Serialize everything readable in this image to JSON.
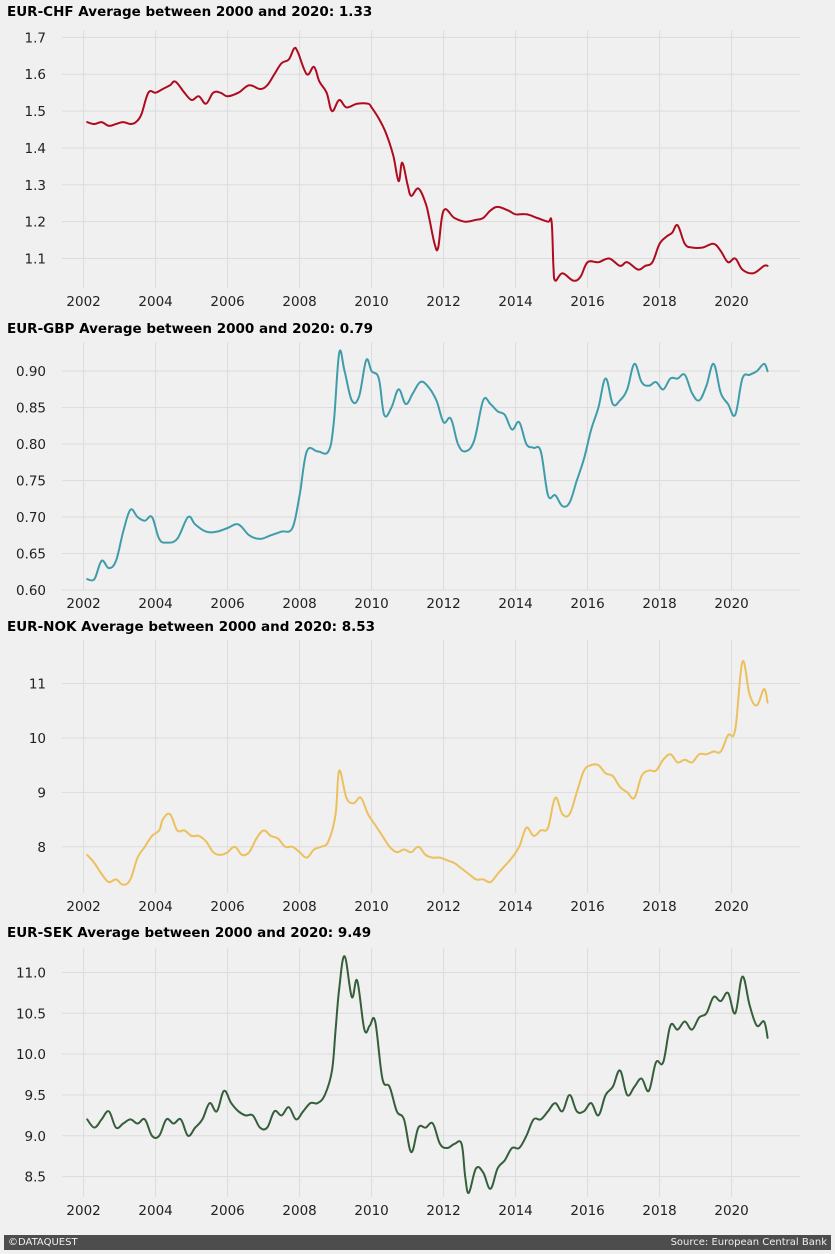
{
  "chart_data": [
    {
      "type": "line",
      "title": "EUR-CHF Average between 2000 and 2020: 1.33",
      "color": "#af0b1e",
      "ylim": [
        1.02,
        1.72
      ],
      "xlim": [
        2001.4,
        2021.9
      ],
      "yticks": [
        1.1,
        1.2,
        1.3,
        1.4,
        1.5,
        1.6,
        1.7
      ],
      "ytick_labels": [
        "1.1",
        "1.2",
        "1.3",
        "1.4",
        "1.5",
        "1.6",
        "1.7"
      ],
      "xticks": [
        2002,
        2004,
        2006,
        2008,
        2010,
        2012,
        2014,
        2016,
        2018,
        2020
      ],
      "xtick_labels": [
        "2002",
        "2004",
        "2006",
        "2008",
        "2010",
        "2012",
        "2014",
        "2016",
        "2018",
        "2020"
      ],
      "series": [
        {
          "x": [
            2002.1,
            2002.3,
            2002.5,
            2002.7,
            2002.9,
            2003.1,
            2003.3,
            2003.45,
            2003.6,
            2003.8,
            2004.0,
            2004.2,
            2004.4,
            2004.55,
            2004.8,
            2005.0,
            2005.2,
            2005.4,
            2005.6,
            2005.8,
            2006.0,
            2006.3,
            2006.6,
            2006.9,
            2007.1,
            2007.3,
            2007.5,
            2007.7,
            2007.85,
            2007.95,
            2008.2,
            2008.4,
            2008.55,
            2008.75,
            2008.9,
            2009.1,
            2009.3,
            2009.6,
            2009.9,
            2010.0,
            2010.2,
            2010.4,
            2010.6,
            2010.75,
            2010.85,
            2011.0,
            2011.1,
            2011.3,
            2011.5,
            2011.6,
            2011.75,
            2011.85,
            2012.0,
            2012.3,
            2012.6,
            2012.9,
            2013.1,
            2013.3,
            2013.5,
            2013.8,
            2014.0,
            2014.3,
            2014.6,
            2014.9,
            2015.0,
            2015.05,
            2015.1,
            2015.3,
            2015.6,
            2015.8,
            2016.0,
            2016.3,
            2016.6,
            2016.9,
            2017.1,
            2017.4,
            2017.6,
            2017.8,
            2018.0,
            2018.2,
            2018.35,
            2018.5,
            2018.7,
            2018.9,
            2019.2,
            2019.5,
            2019.7,
            2019.9,
            2020.1,
            2020.3,
            2020.6,
            2020.9,
            2021.0
          ],
          "y": [
            1.47,
            1.465,
            1.47,
            1.46,
            1.465,
            1.47,
            1.465,
            1.47,
            1.49,
            1.55,
            1.55,
            1.56,
            1.57,
            1.58,
            1.55,
            1.53,
            1.54,
            1.52,
            1.55,
            1.55,
            1.54,
            1.55,
            1.57,
            1.56,
            1.57,
            1.6,
            1.63,
            1.64,
            1.67,
            1.66,
            1.6,
            1.62,
            1.58,
            1.55,
            1.5,
            1.53,
            1.51,
            1.52,
            1.52,
            1.51,
            1.48,
            1.44,
            1.38,
            1.31,
            1.36,
            1.3,
            1.27,
            1.29,
            1.25,
            1.21,
            1.14,
            1.13,
            1.23,
            1.21,
            1.2,
            1.205,
            1.21,
            1.23,
            1.24,
            1.23,
            1.22,
            1.22,
            1.21,
            1.2,
            1.2,
            1.08,
            1.04,
            1.06,
            1.04,
            1.05,
            1.09,
            1.09,
            1.1,
            1.08,
            1.09,
            1.07,
            1.08,
            1.09,
            1.14,
            1.16,
            1.17,
            1.19,
            1.14,
            1.13,
            1.13,
            1.14,
            1.12,
            1.09,
            1.1,
            1.07,
            1.06,
            1.08,
            1.08
          ]
        }
      ]
    },
    {
      "type": "line",
      "title": "EUR-GBP Average between 2000 and 2020: 0.79",
      "color": "#3f9caa",
      "ylim": [
        0.6,
        0.94
      ],
      "xlim": [
        2001.4,
        2021.9
      ],
      "yticks": [
        0.6,
        0.65,
        0.7,
        0.75,
        0.8,
        0.85,
        0.9
      ],
      "ytick_labels": [
        "0.60",
        "0.65",
        "0.70",
        "0.75",
        "0.80",
        "0.85",
        "0.90"
      ],
      "xticks": [
        2002,
        2004,
        2006,
        2008,
        2010,
        2012,
        2014,
        2016,
        2018,
        2020
      ],
      "xtick_labels": [
        "2002",
        "2004",
        "2006",
        "2008",
        "2010",
        "2012",
        "2014",
        "2016",
        "2018",
        "2020"
      ],
      "series": [
        {
          "x": [
            2002.1,
            2002.3,
            2002.5,
            2002.7,
            2002.9,
            2003.1,
            2003.3,
            2003.5,
            2003.7,
            2003.9,
            2004.1,
            2004.3,
            2004.6,
            2004.9,
            2005.1,
            2005.4,
            2005.7,
            2006.0,
            2006.3,
            2006.6,
            2006.9,
            2007.2,
            2007.5,
            2007.8,
            2008.0,
            2008.2,
            2008.5,
            2008.8,
            2008.95,
            2009.1,
            2009.25,
            2009.45,
            2009.65,
            2009.85,
            2010.0,
            2010.2,
            2010.35,
            2010.55,
            2010.75,
            2010.95,
            2011.15,
            2011.35,
            2011.55,
            2011.8,
            2012.0,
            2012.2,
            2012.4,
            2012.6,
            2012.85,
            2013.1,
            2013.3,
            2013.5,
            2013.7,
            2013.9,
            2014.1,
            2014.3,
            2014.5,
            2014.7,
            2014.9,
            2015.1,
            2015.3,
            2015.5,
            2015.7,
            2015.9,
            2016.1,
            2016.3,
            2016.5,
            2016.7,
            2016.9,
            2017.1,
            2017.3,
            2017.5,
            2017.7,
            2017.9,
            2018.1,
            2018.3,
            2018.5,
            2018.7,
            2018.9,
            2019.1,
            2019.3,
            2019.5,
            2019.7,
            2019.9,
            2020.1,
            2020.3,
            2020.5,
            2020.7,
            2020.9,
            2021.0
          ],
          "y": [
            0.615,
            0.615,
            0.64,
            0.63,
            0.64,
            0.68,
            0.71,
            0.7,
            0.695,
            0.7,
            0.67,
            0.665,
            0.67,
            0.7,
            0.69,
            0.68,
            0.68,
            0.685,
            0.69,
            0.675,
            0.67,
            0.675,
            0.68,
            0.685,
            0.73,
            0.79,
            0.79,
            0.79,
            0.83,
            0.925,
            0.9,
            0.86,
            0.865,
            0.915,
            0.9,
            0.89,
            0.84,
            0.85,
            0.875,
            0.855,
            0.87,
            0.885,
            0.88,
            0.86,
            0.83,
            0.835,
            0.8,
            0.79,
            0.805,
            0.86,
            0.855,
            0.845,
            0.84,
            0.82,
            0.83,
            0.8,
            0.795,
            0.79,
            0.73,
            0.73,
            0.715,
            0.72,
            0.75,
            0.78,
            0.82,
            0.85,
            0.89,
            0.855,
            0.86,
            0.875,
            0.91,
            0.885,
            0.88,
            0.885,
            0.875,
            0.89,
            0.89,
            0.895,
            0.87,
            0.86,
            0.88,
            0.91,
            0.87,
            0.855,
            0.84,
            0.89,
            0.895,
            0.9,
            0.91,
            0.9
          ]
        }
      ]
    },
    {
      "type": "line",
      "title": "EUR-NOK Average between 2000 and 2020: 8.53",
      "color": "#ecc05d",
      "ylim": [
        7.15,
        11.8
      ],
      "xlim": [
        2001.4,
        2021.9
      ],
      "yticks": [
        8,
        9,
        10,
        11
      ],
      "ytick_labels": [
        "8",
        "9",
        "10",
        "11"
      ],
      "xticks": [
        2002,
        2004,
        2006,
        2008,
        2010,
        2012,
        2014,
        2016,
        2018,
        2020
      ],
      "xtick_labels": [
        "2002",
        "2004",
        "2006",
        "2008",
        "2010",
        "2012",
        "2014",
        "2016",
        "2018",
        "2020"
      ],
      "series": [
        {
          "x": [
            2002.1,
            2002.3,
            2002.5,
            2002.7,
            2002.9,
            2003.1,
            2003.3,
            2003.5,
            2003.7,
            2003.9,
            2004.1,
            2004.2,
            2004.4,
            2004.6,
            2004.8,
            2005.0,
            2005.2,
            2005.4,
            2005.6,
            2005.8,
            2006.0,
            2006.2,
            2006.4,
            2006.6,
            2006.8,
            2007.0,
            2007.2,
            2007.4,
            2007.6,
            2007.8,
            2008.0,
            2008.2,
            2008.4,
            2008.6,
            2008.8,
            2009.0,
            2009.1,
            2009.3,
            2009.5,
            2009.7,
            2009.9,
            2010.1,
            2010.3,
            2010.5,
            2010.7,
            2010.9,
            2011.1,
            2011.3,
            2011.5,
            2011.7,
            2011.9,
            2012.1,
            2012.3,
            2012.5,
            2012.7,
            2012.9,
            2013.1,
            2013.3,
            2013.5,
            2013.7,
            2013.9,
            2014.1,
            2014.3,
            2014.5,
            2014.7,
            2014.9,
            2015.1,
            2015.3,
            2015.5,
            2015.7,
            2015.9,
            2016.1,
            2016.3,
            2016.5,
            2016.7,
            2016.9,
            2017.1,
            2017.3,
            2017.5,
            2017.7,
            2017.9,
            2018.1,
            2018.3,
            2018.5,
            2018.7,
            2018.9,
            2019.1,
            2019.3,
            2019.5,
            2019.7,
            2019.9,
            2020.1,
            2020.3,
            2020.5,
            2020.7,
            2020.9,
            2021.0
          ],
          "y": [
            7.85,
            7.7,
            7.5,
            7.35,
            7.4,
            7.3,
            7.4,
            7.8,
            8.0,
            8.2,
            8.3,
            8.5,
            8.6,
            8.3,
            8.3,
            8.2,
            8.2,
            8.1,
            7.9,
            7.85,
            7.9,
            8.0,
            7.85,
            7.9,
            8.15,
            8.3,
            8.2,
            8.15,
            8.0,
            8.0,
            7.9,
            7.8,
            7.95,
            8.0,
            8.1,
            8.6,
            9.4,
            8.9,
            8.8,
            8.9,
            8.6,
            8.4,
            8.2,
            8.0,
            7.9,
            7.95,
            7.9,
            8.0,
            7.85,
            7.8,
            7.8,
            7.75,
            7.7,
            7.6,
            7.5,
            7.4,
            7.4,
            7.35,
            7.5,
            7.65,
            7.8,
            8.0,
            8.35,
            8.2,
            8.3,
            8.35,
            8.9,
            8.6,
            8.6,
            9.0,
            9.4,
            9.5,
            9.5,
            9.35,
            9.3,
            9.1,
            9.0,
            8.9,
            9.3,
            9.4,
            9.4,
            9.6,
            9.7,
            9.55,
            9.6,
            9.55,
            9.7,
            9.7,
            9.75,
            9.75,
            10.05,
            10.15,
            11.4,
            10.8,
            10.6,
            10.9,
            10.65
          ]
        }
      ]
    },
    {
      "type": "line",
      "title": "EUR-SEK Average between 2000 and 2020: 9.49",
      "color": "#355e3b",
      "ylim": [
        8.25,
        11.3
      ],
      "xlim": [
        2001.4,
        2021.9
      ],
      "yticks": [
        8.5,
        9.0,
        9.5,
        10.0,
        10.5,
        11.0
      ],
      "ytick_labels": [
        "8.5",
        "9.0",
        "9.5",
        "10.0",
        "10.5",
        "11.0"
      ],
      "xticks": [
        2002,
        2004,
        2006,
        2008,
        2010,
        2012,
        2014,
        2016,
        2018,
        2020
      ],
      "xtick_labels": [
        "2002",
        "2004",
        "2006",
        "2008",
        "2010",
        "2012",
        "2014",
        "2016",
        "2018",
        "2020"
      ],
      "series": [
        {
          "x": [
            2002.1,
            2002.3,
            2002.5,
            2002.7,
            2002.9,
            2003.1,
            2003.3,
            2003.5,
            2003.7,
            2003.9,
            2004.1,
            2004.3,
            2004.5,
            2004.7,
            2004.9,
            2005.1,
            2005.3,
            2005.5,
            2005.7,
            2005.9,
            2006.1,
            2006.3,
            2006.5,
            2006.7,
            2006.9,
            2007.1,
            2007.3,
            2007.5,
            2007.7,
            2007.9,
            2008.1,
            2008.3,
            2008.5,
            2008.7,
            2008.9,
            2009.0,
            2009.1,
            2009.25,
            2009.45,
            2009.6,
            2009.8,
            2009.95,
            2010.1,
            2010.3,
            2010.5,
            2010.7,
            2010.9,
            2011.1,
            2011.3,
            2011.5,
            2011.7,
            2011.9,
            2012.1,
            2012.3,
            2012.5,
            2012.6,
            2012.7,
            2012.9,
            2013.1,
            2013.3,
            2013.5,
            2013.7,
            2013.9,
            2014.1,
            2014.3,
            2014.5,
            2014.7,
            2014.9,
            2015.1,
            2015.3,
            2015.5,
            2015.7,
            2015.9,
            2016.1,
            2016.3,
            2016.5,
            2016.7,
            2016.9,
            2017.1,
            2017.3,
            2017.5,
            2017.7,
            2017.9,
            2018.1,
            2018.3,
            2018.5,
            2018.7,
            2018.9,
            2019.1,
            2019.3,
            2019.5,
            2019.7,
            2019.9,
            2020.1,
            2020.3,
            2020.5,
            2020.7,
            2020.9,
            2021.0
          ],
          "y": [
            9.2,
            9.1,
            9.2,
            9.3,
            9.1,
            9.15,
            9.2,
            9.15,
            9.2,
            9.0,
            9.0,
            9.2,
            9.15,
            9.2,
            9.0,
            9.1,
            9.2,
            9.4,
            9.3,
            9.55,
            9.4,
            9.3,
            9.25,
            9.25,
            9.1,
            9.1,
            9.3,
            9.25,
            9.35,
            9.2,
            9.3,
            9.4,
            9.4,
            9.5,
            9.8,
            10.3,
            10.8,
            11.2,
            10.7,
            10.9,
            10.3,
            10.35,
            10.4,
            9.7,
            9.6,
            9.3,
            9.2,
            8.8,
            9.1,
            9.1,
            9.15,
            8.9,
            8.85,
            8.9,
            8.9,
            8.5,
            8.3,
            8.6,
            8.55,
            8.35,
            8.6,
            8.7,
            8.85,
            8.85,
            9.0,
            9.2,
            9.2,
            9.3,
            9.4,
            9.3,
            9.5,
            9.3,
            9.3,
            9.4,
            9.25,
            9.5,
            9.6,
            9.8,
            9.5,
            9.6,
            9.7,
            9.55,
            9.9,
            9.9,
            10.35,
            10.3,
            10.4,
            10.3,
            10.45,
            10.5,
            10.7,
            10.65,
            10.75,
            10.5,
            10.95,
            10.6,
            10.35,
            10.4,
            10.2
          ]
        }
      ]
    }
  ],
  "footer": {
    "left": "©DATAQUEST",
    "right": "Source: European Central Bank"
  }
}
